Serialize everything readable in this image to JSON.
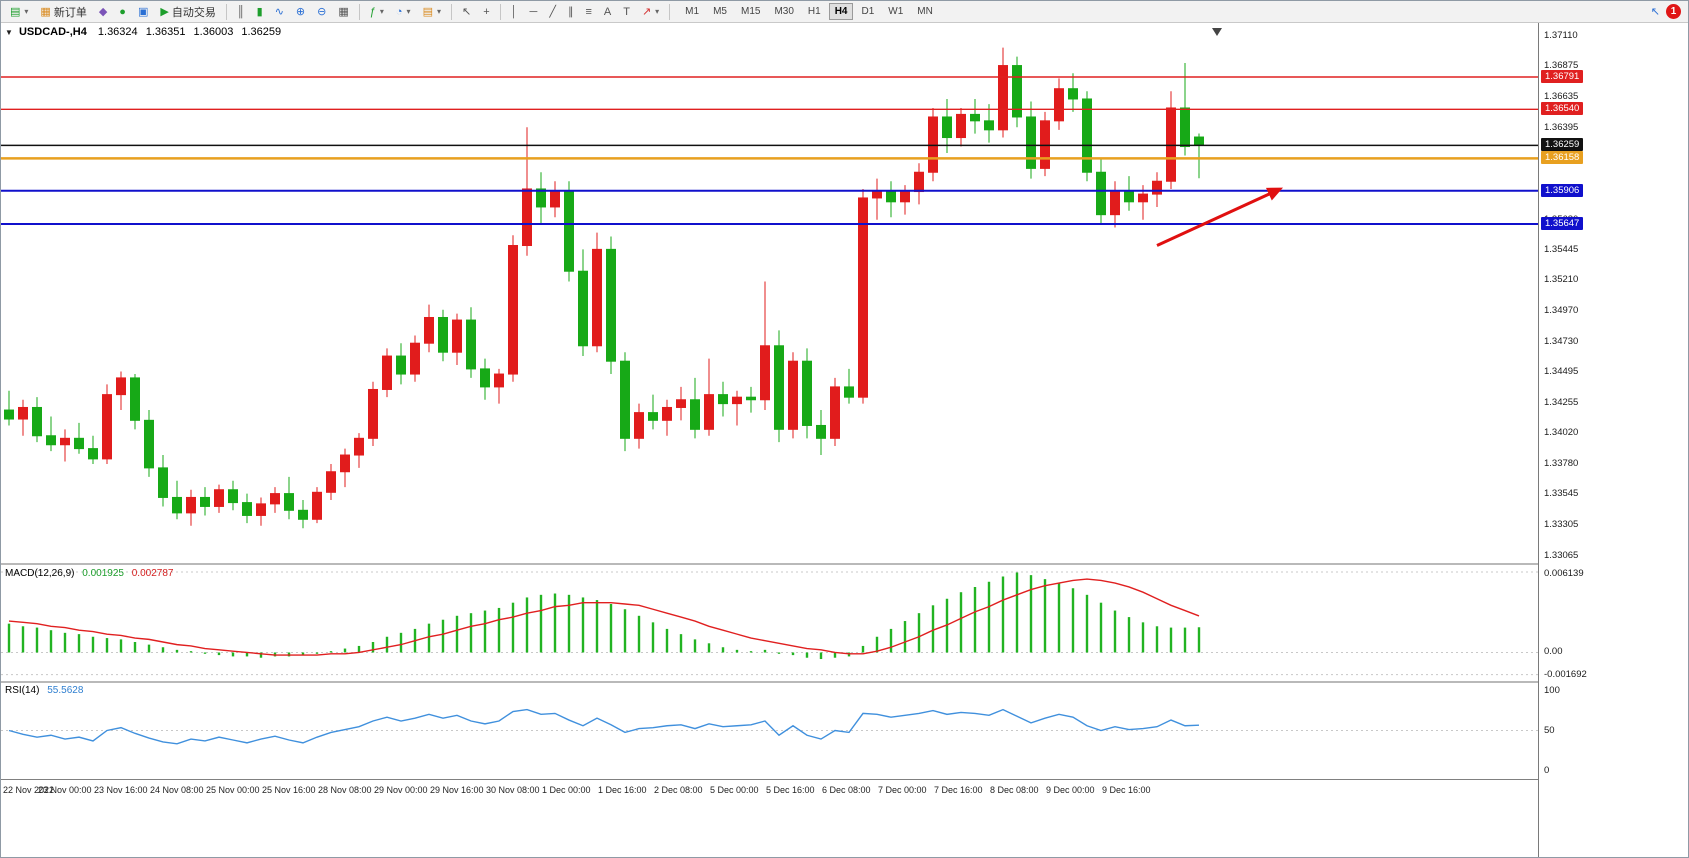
{
  "toolbar": {
    "new_order": "新订单",
    "autotrading": "自动交易",
    "timeframes": [
      "M1",
      "M5",
      "M15",
      "M30",
      "H1",
      "H4",
      "D1",
      "W1",
      "MN"
    ],
    "active_timeframe": "H4",
    "badge_count": "1"
  },
  "icons": {
    "expand": "▼",
    "new_chart": "▤",
    "dropdown": "▾",
    "new_order": "▦",
    "market": "◆",
    "signals": "●",
    "community": "▣",
    "autotrading": "▶",
    "bar_chart": "║",
    "candles": "▮",
    "line_chart": "∿",
    "zoom_in": "⊕",
    "zoom_out": "⊖",
    "tile_windows": "▦",
    "indicators": "ƒ",
    "periods": "◔",
    "templates": "▤",
    "cursor": "↖",
    "crosshair": "+",
    "vline": "│",
    "hline": "─",
    "trendline": "╱",
    "channel": "∥",
    "fibo": "≡",
    "text": "A",
    "text_label": "T",
    "arrows": "↗",
    "pointer": "↖"
  },
  "chart": {
    "symbol_title": "USDCAD-,H4",
    "ohlc": {
      "open": "1.36324",
      "high": "1.36351",
      "low": "1.36003",
      "close": "1.36259"
    }
  },
  "indicators": {
    "macd": {
      "label": "MACD(12,26,9)",
      "value1": "0.001925",
      "value2": "0.002787",
      "axis": [
        "0.006139",
        "0.00",
        "-0.001692"
      ]
    },
    "rsi": {
      "label": "RSI(14)",
      "value": "55.5628",
      "axis": [
        "100",
        "50",
        "0"
      ]
    }
  },
  "price_axis": {
    "ticks": [
      "1.37110",
      "1.36875",
      "1.36635",
      "1.36395",
      "1.36155",
      "1.35920",
      "1.35680",
      "1.35445",
      "1.35210",
      "1.34970",
      "1.34730",
      "1.34495",
      "1.34255",
      "1.34020",
      "1.33780",
      "1.33545",
      "1.33305",
      "1.33065"
    ],
    "badges": [
      {
        "label": "1.36791",
        "color": "#e02020"
      },
      {
        "label": "1.36540",
        "color": "#e02020"
      },
      {
        "label": "1.36259",
        "color": "#111111"
      },
      {
        "label": "1.36158",
        "color": "#e8a020"
      },
      {
        "label": "1.35906",
        "color": "#1010cc"
      },
      {
        "label": "1.35647",
        "color": "#1010cc"
      }
    ]
  },
  "colors": {
    "bull": "#e11c1c",
    "bear": "#17a917",
    "macd_hist": "#22b322",
    "macd_signal": "#e02020",
    "rsi": "#4090dd"
  },
  "chart_data": {
    "type": "candlestick",
    "symbol": "USDCAD",
    "timeframe": "H4",
    "title": "USDCAD-,H4 1.36324 1.36351 1.36003 1.36259",
    "price_range": [
      1.3301,
      1.3718
    ],
    "label_step": 4,
    "time_labels": [
      "22 Nov 2022",
      "23 Nov 00:00",
      "23 Nov 16:00",
      "24 Nov 08:00",
      "25 Nov 00:00",
      "25 Nov 16:00",
      "28 Nov 08:00",
      "29 Nov 00:00",
      "29 Nov 16:00",
      "30 Nov 08:00",
      "1 Dec 00:00",
      "1 Dec 16:00",
      "2 Dec 08:00",
      "5 Dec 00:00",
      "5 Dec 16:00",
      "6 Dec 08:00",
      "7 Dec 00:00",
      "7 Dec 16:00",
      "8 Dec 08:00",
      "9 Dec 00:00",
      "9 Dec 16:00"
    ],
    "candles": [
      [
        1.342,
        1.3435,
        1.3408,
        1.3413
      ],
      [
        1.3413,
        1.3428,
        1.34,
        1.3422
      ],
      [
        1.3422,
        1.343,
        1.3395,
        1.34
      ],
      [
        1.34,
        1.3415,
        1.3388,
        1.3393
      ],
      [
        1.3393,
        1.3405,
        1.338,
        1.3398
      ],
      [
        1.3398,
        1.341,
        1.3386,
        1.339
      ],
      [
        1.339,
        1.34,
        1.3378,
        1.3382
      ],
      [
        1.3382,
        1.344,
        1.3378,
        1.3432
      ],
      [
        1.3432,
        1.345,
        1.342,
        1.3445
      ],
      [
        1.3445,
        1.3448,
        1.3405,
        1.3412
      ],
      [
        1.3412,
        1.342,
        1.3368,
        1.3375
      ],
      [
        1.3375,
        1.3385,
        1.3345,
        1.3352
      ],
      [
        1.3352,
        1.3365,
        1.3335,
        1.334
      ],
      [
        1.334,
        1.3358,
        1.333,
        1.3352
      ],
      [
        1.3352,
        1.336,
        1.3338,
        1.3345
      ],
      [
        1.3345,
        1.3362,
        1.334,
        1.3358
      ],
      [
        1.3358,
        1.3365,
        1.3342,
        1.3348
      ],
      [
        1.3348,
        1.3355,
        1.3332,
        1.3338
      ],
      [
        1.3338,
        1.3352,
        1.333,
        1.3347
      ],
      [
        1.3347,
        1.336,
        1.334,
        1.3355
      ],
      [
        1.3355,
        1.3368,
        1.3335,
        1.3342
      ],
      [
        1.3342,
        1.335,
        1.3328,
        1.3335
      ],
      [
        1.3335,
        1.336,
        1.3332,
        1.3356
      ],
      [
        1.3356,
        1.3378,
        1.335,
        1.3372
      ],
      [
        1.3372,
        1.339,
        1.336,
        1.3385
      ],
      [
        1.3385,
        1.3402,
        1.3375,
        1.3398
      ],
      [
        1.3398,
        1.3442,
        1.3392,
        1.3436
      ],
      [
        1.3436,
        1.3468,
        1.343,
        1.3462
      ],
      [
        1.3462,
        1.3472,
        1.344,
        1.3448
      ],
      [
        1.3448,
        1.3478,
        1.3442,
        1.3472
      ],
      [
        1.3472,
        1.3502,
        1.3465,
        1.3492
      ],
      [
        1.3492,
        1.3498,
        1.3458,
        1.3465
      ],
      [
        1.3465,
        1.3495,
        1.3455,
        1.349
      ],
      [
        1.349,
        1.35,
        1.3445,
        1.3452
      ],
      [
        1.3452,
        1.346,
        1.3428,
        1.3438
      ],
      [
        1.3438,
        1.3452,
        1.3425,
        1.3448
      ],
      [
        1.3448,
        1.3556,
        1.3442,
        1.3548
      ],
      [
        1.3548,
        1.364,
        1.354,
        1.3592
      ],
      [
        1.3592,
        1.3605,
        1.3565,
        1.3578
      ],
      [
        1.3578,
        1.3598,
        1.357,
        1.359
      ],
      [
        1.359,
        1.3598,
        1.352,
        1.3528
      ],
      [
        1.3528,
        1.3545,
        1.3462,
        1.347
      ],
      [
        1.347,
        1.3558,
        1.3465,
        1.3545
      ],
      [
        1.3545,
        1.3555,
        1.3448,
        1.3458
      ],
      [
        1.3458,
        1.3465,
        1.3388,
        1.3398
      ],
      [
        1.3398,
        1.3425,
        1.339,
        1.3418
      ],
      [
        1.3418,
        1.3432,
        1.3405,
        1.3412
      ],
      [
        1.3412,
        1.3428,
        1.34,
        1.3422
      ],
      [
        1.3422,
        1.3438,
        1.3412,
        1.3428
      ],
      [
        1.3428,
        1.3445,
        1.3398,
        1.3405
      ],
      [
        1.3405,
        1.346,
        1.34,
        1.3432
      ],
      [
        1.3432,
        1.3442,
        1.3415,
        1.3425
      ],
      [
        1.3425,
        1.3435,
        1.3408,
        1.343
      ],
      [
        1.343,
        1.3438,
        1.3418,
        1.3428
      ],
      [
        1.3428,
        1.352,
        1.342,
        1.347
      ],
      [
        1.347,
        1.3482,
        1.3395,
        1.3405
      ],
      [
        1.3405,
        1.3465,
        1.3398,
        1.3458
      ],
      [
        1.3458,
        1.3468,
        1.3398,
        1.3408
      ],
      [
        1.3408,
        1.342,
        1.3385,
        1.3398
      ],
      [
        1.3398,
        1.3445,
        1.3392,
        1.3438
      ],
      [
        1.3438,
        1.3452,
        1.3425,
        1.343
      ],
      [
        1.343,
        1.3592,
        1.3425,
        1.3585
      ],
      [
        1.3585,
        1.36,
        1.3568,
        1.359
      ],
      [
        1.359,
        1.3598,
        1.357,
        1.3582
      ],
      [
        1.3582,
        1.3595,
        1.3572,
        1.359
      ],
      [
        1.359,
        1.3612,
        1.358,
        1.3605
      ],
      [
        1.3605,
        1.3655,
        1.3598,
        1.3648
      ],
      [
        1.3648,
        1.3662,
        1.362,
        1.3632
      ],
      [
        1.3632,
        1.3655,
        1.3625,
        1.365
      ],
      [
        1.365,
        1.3662,
        1.3635,
        1.3645
      ],
      [
        1.3645,
        1.3658,
        1.3628,
        1.3638
      ],
      [
        1.3638,
        1.3702,
        1.3632,
        1.3688
      ],
      [
        1.3688,
        1.3695,
        1.364,
        1.3648
      ],
      [
        1.3648,
        1.366,
        1.36,
        1.3608
      ],
      [
        1.3608,
        1.3652,
        1.3602,
        1.3645
      ],
      [
        1.3645,
        1.3678,
        1.3638,
        1.367
      ],
      [
        1.367,
        1.3682,
        1.3652,
        1.3662
      ],
      [
        1.3662,
        1.3668,
        1.3598,
        1.3605
      ],
      [
        1.3605,
        1.3615,
        1.3565,
        1.3572
      ],
      [
        1.3572,
        1.3598,
        1.3562,
        1.359
      ],
      [
        1.359,
        1.3602,
        1.3575,
        1.3582
      ],
      [
        1.3582,
        1.3595,
        1.3568,
        1.3588
      ],
      [
        1.3588,
        1.3605,
        1.3578,
        1.3598
      ],
      [
        1.3598,
        1.3668,
        1.3592,
        1.3655
      ],
      [
        1.3655,
        1.369,
        1.3618,
        1.3625
      ],
      [
        1.36324,
        1.36351,
        1.36003,
        1.36259
      ]
    ],
    "hlines": [
      {
        "price": 1.36791,
        "color": "#e02020",
        "width": 1.4
      },
      {
        "price": 1.3654,
        "color": "#e02020",
        "width": 1.4
      },
      {
        "price": 1.36259,
        "color": "#111111",
        "width": 1.4
      },
      {
        "price": 1.36158,
        "color": "#e8a020",
        "width": 2.4
      },
      {
        "price": 1.35906,
        "color": "#1010cc",
        "width": 2
      },
      {
        "price": 1.35647,
        "color": "#1010cc",
        "width": 2
      }
    ],
    "macd": {
      "range": [
        -0.0021,
        0.0066
      ],
      "levels": [
        0.006139,
        0,
        -0.001692
      ],
      "hist": [
        0.0022,
        0.002,
        0.0019,
        0.0017,
        0.0015,
        0.0014,
        0.0012,
        0.0011,
        0.001,
        0.0008,
        0.0006,
        0.0004,
        0.0002,
        0.0001,
        -0.0001,
        -0.0002,
        -0.0003,
        -0.0003,
        -0.0004,
        -0.0003,
        -0.0003,
        -0.0002,
        -0.0001,
        0.0001,
        0.0003,
        0.0005,
        0.0008,
        0.0012,
        0.0015,
        0.0018,
        0.0022,
        0.0025,
        0.0028,
        0.003,
        0.0032,
        0.0034,
        0.0038,
        0.0042,
        0.0044,
        0.0045,
        0.0044,
        0.0042,
        0.004,
        0.0037,
        0.0033,
        0.0028,
        0.0023,
        0.0018,
        0.0014,
        0.001,
        0.0007,
        0.0004,
        0.0002,
        0.0001,
        0.0002,
        -0.0001,
        -0.0002,
        -0.0004,
        -0.0005,
        -0.0004,
        -0.0003,
        0.0005,
        0.0012,
        0.0018,
        0.0024,
        0.003,
        0.0036,
        0.0041,
        0.0046,
        0.005,
        0.0054,
        0.0058,
        0.0061,
        0.0059,
        0.0056,
        0.0053,
        0.0049,
        0.0044,
        0.0038,
        0.0032,
        0.0027,
        0.0023,
        0.002,
        0.0019,
        0.0019,
        0.001925
      ],
      "signal": [
        0.0024,
        0.0023,
        0.0022,
        0.002,
        0.0019,
        0.0017,
        0.0016,
        0.0014,
        0.0013,
        0.0011,
        0.001,
        0.0008,
        0.0006,
        0.0005,
        0.0003,
        0.0002,
        0.0001,
        0.0,
        -0.0001,
        -0.0002,
        -0.0002,
        -0.0002,
        -0.0002,
        -0.0001,
        -0.0001,
        0.0,
        0.0002,
        0.0004,
        0.0006,
        0.0009,
        0.0012,
        0.0014,
        0.0017,
        0.002,
        0.0022,
        0.0025,
        0.0027,
        0.003,
        0.0032,
        0.0035,
        0.0036,
        0.0038,
        0.0038,
        0.0038,
        0.0037,
        0.0036,
        0.0033,
        0.003,
        0.0027,
        0.0024,
        0.002,
        0.0017,
        0.0014,
        0.0011,
        0.0009,
        0.0007,
        0.0005,
        0.0003,
        0.0002,
        0.0,
        -0.0001,
        -0.0001,
        0.0001,
        0.0004,
        0.0008,
        0.0012,
        0.0017,
        0.0021,
        0.0026,
        0.0031,
        0.0035,
        0.004,
        0.0044,
        0.0048,
        0.0051,
        0.0053,
        0.0055,
        0.0056,
        0.0055,
        0.0053,
        0.005,
        0.0046,
        0.0041,
        0.0036,
        0.0032,
        0.002787
      ]
    },
    "rsi": {
      "range": [
        0,
        100
      ],
      "level": 50,
      "values": [
        50,
        46,
        43,
        45,
        41,
        43,
        39,
        50,
        53,
        47,
        42,
        38,
        36,
        41,
        39,
        43,
        40,
        37,
        41,
        44,
        40,
        37,
        43,
        48,
        51,
        54,
        60,
        64,
        60,
        63,
        67,
        63,
        66,
        60,
        57,
        60,
        70,
        72,
        67,
        68,
        61,
        55,
        63,
        56,
        48,
        52,
        53,
        55,
        56,
        52,
        57,
        54,
        55,
        56,
        60,
        45,
        55,
        45,
        41,
        50,
        48,
        68,
        67,
        64,
        66,
        68,
        71,
        67,
        69,
        68,
        66,
        72,
        65,
        58,
        63,
        67,
        64,
        55,
        50,
        54,
        51,
        52,
        54,
        61,
        55,
        55.5628
      ]
    },
    "arrow": {
      "from": {
        "index": 82,
        "price": 1.3548
      },
      "to": {
        "index": 91,
        "price": 1.3593
      },
      "color": "#e01010"
    }
  }
}
